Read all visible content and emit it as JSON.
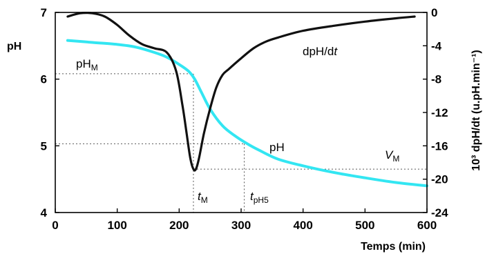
{
  "chart_data": {
    "type": "line",
    "xlabel": "Temps (min)",
    "ylabel_left": "pH",
    "ylabel_right": "10³ dpH/dt (u.pH.min⁻¹)",
    "xlim": [
      0,
      600
    ],
    "ylim_left": [
      4,
      7
    ],
    "ylim_right": [
      -24,
      0
    ],
    "x_ticks": [
      "0",
      "100",
      "200",
      "300",
      "400",
      "500",
      "600"
    ],
    "y_left_ticks": [
      "4",
      "5",
      "6",
      "7"
    ],
    "y_right_ticks": [
      "0",
      "-4",
      "-8",
      "-12",
      "-16",
      "-20",
      "-24"
    ],
    "grid": false,
    "colors": {
      "ph": "#33e6f2",
      "dph": "#111111",
      "guides": "#555555"
    },
    "series": [
      {
        "name": "pH",
        "axis": "left",
        "x": [
          20,
          60,
          100,
          130,
          160,
          180,
          200,
          215,
          225,
          235,
          250,
          270,
          290,
          310,
          330,
          360,
          400,
          450,
          500,
          550,
          600
        ],
        "values": [
          6.58,
          6.55,
          6.52,
          6.48,
          6.4,
          6.33,
          6.22,
          6.12,
          6.0,
          5.82,
          5.55,
          5.3,
          5.15,
          5.03,
          4.93,
          4.8,
          4.7,
          4.6,
          4.52,
          4.45,
          4.4
        ]
      },
      {
        "name": "dpH/dt",
        "axis": "right",
        "x": [
          20,
          40,
          60,
          80,
          100,
          120,
          140,
          160,
          180,
          195,
          205,
          212,
          218,
          223,
          227,
          232,
          240,
          250,
          260,
          270,
          280,
          300,
          320,
          340,
          360,
          400,
          450,
          500,
          550,
          580
        ],
        "values": [
          -0.5,
          -0.1,
          -0.1,
          -0.5,
          -1.5,
          -2.8,
          -3.8,
          -4.3,
          -4.8,
          -7.0,
          -11.0,
          -14.5,
          -17.5,
          -18.8,
          -18.8,
          -17.5,
          -14.5,
          -11.5,
          -9.0,
          -7.5,
          -6.8,
          -5.5,
          -4.3,
          -3.5,
          -3.0,
          -2.2,
          -1.6,
          -1.1,
          -0.7,
          -0.5
        ]
      }
    ],
    "annotations": {
      "ph_m": {
        "main": "pH",
        "sub": "M"
      },
      "t_m": {
        "main": "t",
        "sub": "M"
      },
      "t_ph5": {
        "main": "t",
        "sub": "pH5"
      },
      "v_m": {
        "main": "V",
        "sub": "M"
      },
      "ph_curve_label": "pH",
      "dph_curve_label": {
        "main": "dpH/d",
        "italic": "t"
      }
    },
    "guides": {
      "ph_m": 6.08,
      "t_m": 223,
      "ph5": 5.03,
      "t_ph5": 305,
      "v_m": -18.8
    }
  }
}
